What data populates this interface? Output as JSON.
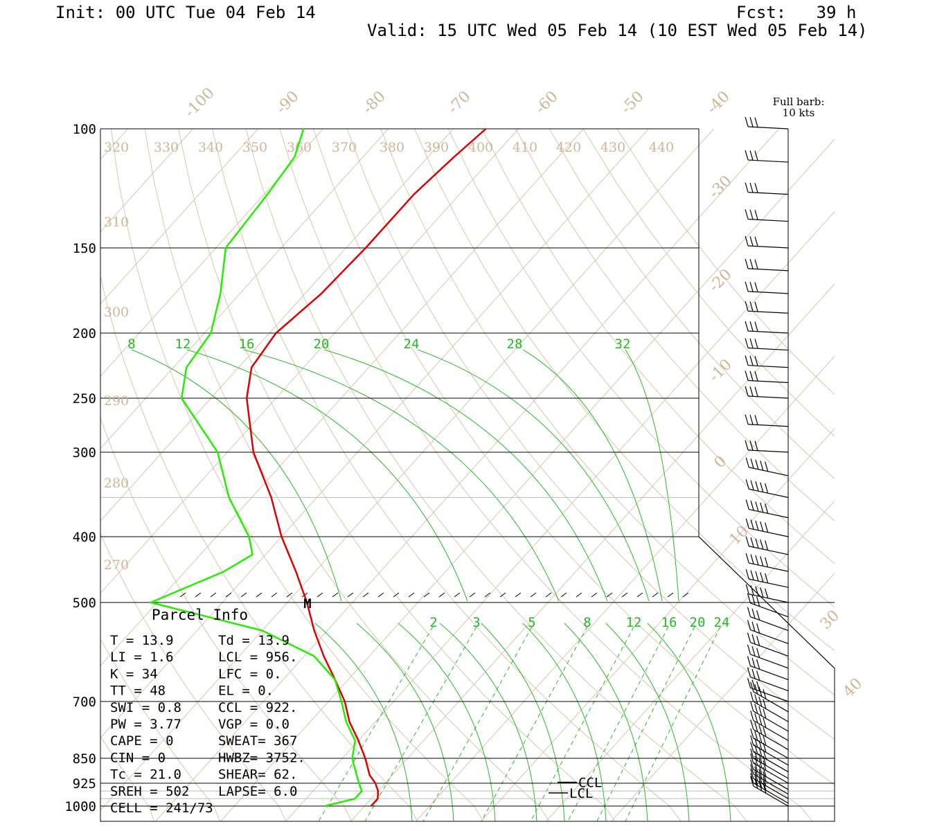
{
  "header": {
    "init": "Init: 00 UTC Tue 04 Feb 14",
    "fcst": "Fcst:   39 h",
    "valid": "Valid: 15 UTC Wed 05 Feb 14 (10 EST Wed 05 Feb 14)"
  },
  "barb_legend": {
    "line1": "Full barb:",
    "line2": "10 kts"
  },
  "chart_data": {
    "type": "line",
    "title": "",
    "pressure_levels": [
      {
        "p": 100,
        "label": "100"
      },
      {
        "p": 150,
        "label": "150"
      },
      {
        "p": 200,
        "label": "200"
      },
      {
        "p": 250,
        "label": "250"
      },
      {
        "p": 300,
        "label": "300"
      },
      {
        "p": 400,
        "label": "400"
      },
      {
        "p": 500,
        "label": "500"
      },
      {
        "p": 700,
        "label": "700"
      },
      {
        "p": 850,
        "label": "850"
      },
      {
        "p": 925,
        "label": "925"
      },
      {
        "p": 1000,
        "label": "1000"
      }
    ],
    "isotherm_labels": [
      "-100",
      "-90",
      "-80",
      "-70",
      "-60",
      "-50",
      "-40",
      "-30",
      "-20",
      "-10",
      "0",
      "10",
      "30",
      "40"
    ],
    "theta_labels": [
      "320",
      "330",
      "340",
      "350",
      "360",
      "370",
      "380",
      "390",
      "400",
      "410",
      "420",
      "430",
      "440",
      "310",
      "300",
      "290",
      "280",
      "270"
    ],
    "upper_mixing_ratio_labels": [
      "8",
      "12",
      "16",
      "20",
      "24",
      "28",
      "32"
    ],
    "lower_mixing_ratio_labels": [
      "2",
      "3",
      "5",
      "8",
      "12",
      "16",
      "20",
      "24"
    ],
    "series": [
      {
        "name": "Temperature",
        "color": "#dd0000",
        "points": [
          {
            "p": 1000,
            "t": 21.0
          },
          {
            "p": 975,
            "t": 21.0
          },
          {
            "p": 950,
            "t": 20.0
          },
          {
            "p": 925,
            "t": 18.5
          },
          {
            "p": 900,
            "t": 16.5
          },
          {
            "p": 850,
            "t": 13.5
          },
          {
            "p": 800,
            "t": 10.0
          },
          {
            "p": 750,
            "t": 6.0
          },
          {
            "p": 700,
            "t": 2.5
          },
          {
            "p": 650,
            "t": -2.0
          },
          {
            "p": 600,
            "t": -7.0
          },
          {
            "p": 550,
            "t": -12.0
          },
          {
            "p": 500,
            "t": -17.0
          },
          {
            "p": 450,
            "t": -23.0
          },
          {
            "p": 400,
            "t": -30.0
          },
          {
            "p": 350,
            "t": -37.0
          },
          {
            "p": 300,
            "t": -46.0
          },
          {
            "p": 250,
            "t": -54.5
          },
          {
            "p": 225,
            "t": -58.0
          },
          {
            "p": 200,
            "t": -59.0
          },
          {
            "p": 175,
            "t": -57.5
          },
          {
            "p": 150,
            "t": -57.0
          },
          {
            "p": 125,
            "t": -57.0
          },
          {
            "p": 110,
            "t": -56.0
          },
          {
            "p": 100,
            "t": -55.0
          }
        ]
      },
      {
        "name": "Dewpoint",
        "color": "#22ee00",
        "points": [
          {
            "p": 1000,
            "t": 13.9
          },
          {
            "p": 975,
            "t": 17.5
          },
          {
            "p": 950,
            "t": 17.5
          },
          {
            "p": 925,
            "t": 16.0
          },
          {
            "p": 900,
            "t": 14.5
          },
          {
            "p": 850,
            "t": 11.5
          },
          {
            "p": 800,
            "t": 9.5
          },
          {
            "p": 750,
            "t": 5.5
          },
          {
            "p": 700,
            "t": 2.0
          },
          {
            "p": 650,
            "t": -2.0
          },
          {
            "p": 600,
            "t": -8.5
          },
          {
            "p": 550,
            "t": -20.0
          },
          {
            "p": 500,
            "t": -41.0
          },
          {
            "p": 450,
            "t": -34.0
          },
          {
            "p": 425,
            "t": -32.0
          },
          {
            "p": 400,
            "t": -35.0
          },
          {
            "p": 350,
            "t": -43.5
          },
          {
            "p": 300,
            "t": -51.5
          },
          {
            "p": 250,
            "t": -64.5
          },
          {
            "p": 225,
            "t": -68.0
          },
          {
            "p": 200,
            "t": -69.0
          },
          {
            "p": 175,
            "t": -73.0
          },
          {
            "p": 150,
            "t": -78.5
          },
          {
            "p": 125,
            "t": -79.5
          },
          {
            "p": 110,
            "t": -80.5
          },
          {
            "p": 100,
            "t": -83.0
          }
        ]
      }
    ],
    "annotations": [
      {
        "text": "M",
        "p": 500,
        "t": -17.0
      },
      {
        "text": "CCL",
        "p": 922
      },
      {
        "text": "LCL",
        "p": 956
      }
    ],
    "barb_pressures": [
      100,
      112,
      125,
      137,
      150,
      162,
      175,
      187,
      200,
      212,
      225,
      237,
      250,
      275,
      300,
      325,
      350,
      375,
      400,
      425,
      450,
      475,
      500,
      525,
      550,
      575,
      600,
      625,
      650,
      675,
      700,
      725,
      750,
      775,
      800,
      825,
      850,
      870,
      890,
      910,
      925,
      945,
      960,
      975,
      990,
      1000
    ]
  },
  "parcel_info": {
    "title": "Parcel Info",
    "rows": [
      {
        "l": "T  =    13.9",
        "r": "Td =  13.9"
      },
      {
        "l": "LI =     1.6",
        "r": "LCL =  956."
      },
      {
        "l": "K  =      34",
        "r": "LFC =    0."
      },
      {
        "l": "TT =      48",
        "r": "EL  =    0."
      },
      {
        "l": "SWI =    0.8",
        "r": "CCL =  922."
      },
      {
        "l": "PW =    3.77",
        "r": "VGP =   0.0"
      },
      {
        "l": "CAPE =     0",
        "r": "SWEAT=  367"
      },
      {
        "l": "CIN =      0",
        "r": "HWBZ= 3752."
      },
      {
        "l": "Tc =    21.0",
        "r": "SHEAR=  62."
      },
      {
        "l": "SREH =   502",
        "r": "LAPSE=  6.0"
      },
      {
        "l": "CELL = 241/73",
        "r": ""
      }
    ]
  }
}
